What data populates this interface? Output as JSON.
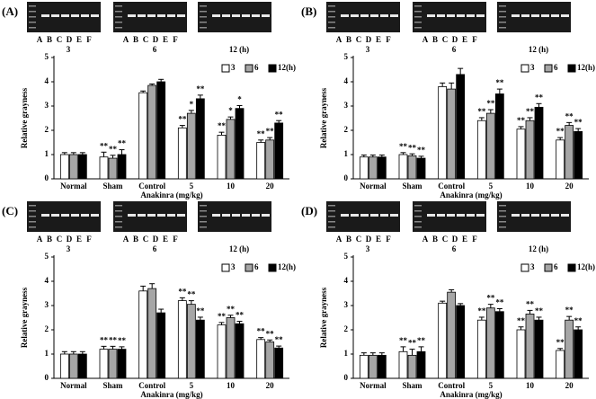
{
  "chart_data": [
    {
      "type": "bar",
      "panel": "(A)",
      "gel_lanes": [
        "A",
        "B",
        "C",
        "D",
        "E",
        "F"
      ],
      "gel_groups": [
        "3",
        "6",
        "12 (h)"
      ],
      "y_label": "Relative grayness",
      "x_label": "Anakinra (mg/kg)",
      "categories": [
        "Normal",
        "Sham",
        "Control",
        "5",
        "10",
        "20"
      ],
      "ylim": [
        0,
        5
      ],
      "yticks": [
        0,
        1,
        2,
        3,
        4,
        5
      ],
      "series": [
        {
          "name": "3",
          "color": "#ffffff",
          "values": [
            1.0,
            0.9,
            3.55,
            2.1,
            1.8,
            1.5
          ],
          "errors": [
            0.08,
            0.2,
            0.07,
            0.1,
            0.12,
            0.1
          ],
          "annotations": [
            null,
            "**",
            null,
            "**",
            "**",
            "**"
          ]
        },
        {
          "name": "6",
          "color": "#a6a6a6",
          "values": [
            1.0,
            0.85,
            3.85,
            2.7,
            2.45,
            1.6
          ],
          "errors": [
            0.08,
            0.12,
            0.06,
            0.12,
            0.1,
            0.1
          ],
          "annotations": [
            null,
            "**",
            null,
            "*",
            "*",
            "**"
          ]
        },
        {
          "name": "12(h)",
          "color": "#000000",
          "values": [
            1.0,
            1.0,
            4.0,
            3.3,
            2.9,
            2.3
          ],
          "errors": [
            0.08,
            0.2,
            0.1,
            0.15,
            0.12,
            0.1
          ],
          "annotations": [
            null,
            "**",
            null,
            "**",
            "*",
            "**"
          ]
        }
      ]
    },
    {
      "type": "bar",
      "panel": "(B)",
      "gel_lanes": [
        "A",
        "B",
        "C",
        "D",
        "E",
        "F"
      ],
      "gel_groups": [
        "3",
        "6",
        "12 (h)"
      ],
      "y_label": "Relative grayness",
      "x_label": "Anakinra (mg/kg)",
      "categories": [
        "Normal",
        "Sham",
        "Control",
        "5",
        "10",
        "20"
      ],
      "ylim": [
        0,
        5
      ],
      "yticks": [
        0,
        1,
        2,
        3,
        4,
        5
      ],
      "series": [
        {
          "name": "3",
          "color": "#ffffff",
          "values": [
            0.9,
            1.0,
            3.8,
            2.4,
            2.05,
            1.6
          ],
          "errors": [
            0.08,
            0.08,
            0.15,
            0.12,
            0.1,
            0.1
          ],
          "annotations": [
            null,
            "**",
            null,
            "**",
            "**",
            "**"
          ]
        },
        {
          "name": "6",
          "color": "#a6a6a6",
          "values": [
            0.9,
            0.95,
            3.7,
            2.7,
            2.4,
            2.2
          ],
          "errors": [
            0.08,
            0.08,
            0.25,
            0.15,
            0.12,
            0.12
          ],
          "annotations": [
            null,
            "**",
            null,
            "**",
            "**",
            "**"
          ]
        },
        {
          "name": "12(h)",
          "color": "#000000",
          "values": [
            0.9,
            0.85,
            4.3,
            3.5,
            2.95,
            1.95
          ],
          "errors": [
            0.08,
            0.08,
            0.25,
            0.2,
            0.15,
            0.12
          ],
          "annotations": [
            null,
            "**",
            null,
            "**",
            "**",
            "**"
          ]
        }
      ]
    },
    {
      "type": "bar",
      "panel": "(C)",
      "gel_lanes": [
        "A",
        "B",
        "C",
        "D",
        "E",
        "F"
      ],
      "gel_groups": [
        "3",
        "6",
        "12 (h)"
      ],
      "y_label": "Relative grayness",
      "x_label": "Anakinra (mg/kg)",
      "categories": [
        "Normal",
        "Sham",
        "Control",
        "5",
        "10",
        "20"
      ],
      "ylim": [
        0,
        5
      ],
      "yticks": [
        0,
        1,
        2,
        3,
        4,
        5
      ],
      "series": [
        {
          "name": "3",
          "color": "#ffffff",
          "values": [
            1.0,
            1.2,
            3.6,
            3.2,
            2.2,
            1.6
          ],
          "errors": [
            0.1,
            0.12,
            0.2,
            0.12,
            0.1,
            0.08
          ],
          "annotations": [
            null,
            "**",
            null,
            "**",
            "**",
            "**"
          ]
        },
        {
          "name": "6",
          "color": "#a6a6a6",
          "values": [
            1.0,
            1.2,
            3.7,
            3.05,
            2.5,
            1.5
          ],
          "errors": [
            0.1,
            0.12,
            0.2,
            0.15,
            0.1,
            0.08
          ],
          "annotations": [
            null,
            "**",
            null,
            "**",
            "**",
            "**"
          ]
        },
        {
          "name": "12(h)",
          "color": "#000000",
          "values": [
            1.0,
            1.2,
            2.7,
            2.4,
            2.25,
            1.25
          ],
          "errors": [
            0.1,
            0.1,
            0.15,
            0.12,
            0.1,
            0.08
          ],
          "annotations": [
            null,
            "**",
            null,
            "**",
            "**",
            "**"
          ]
        }
      ]
    },
    {
      "type": "bar",
      "panel": "(D)",
      "gel_lanes": [
        "A",
        "B",
        "C",
        "D",
        "E",
        "F"
      ],
      "gel_groups": [
        "3",
        "6",
        "12 (h)"
      ],
      "y_label": "Relative grayness",
      "x_label": "Anakinra (mg/kg)",
      "categories": [
        "Normal",
        "Sham",
        "Control",
        "5",
        "10",
        "20"
      ],
      "ylim": [
        0,
        5
      ],
      "yticks": [
        0,
        1,
        2,
        3,
        4,
        5
      ],
      "series": [
        {
          "name": "3",
          "color": "#ffffff",
          "values": [
            0.95,
            1.1,
            3.1,
            2.4,
            2.0,
            1.15
          ],
          "errors": [
            0.1,
            0.2,
            0.08,
            0.12,
            0.12,
            0.08
          ],
          "annotations": [
            null,
            "**",
            null,
            "**",
            "**",
            "**"
          ]
        },
        {
          "name": "6",
          "color": "#a6a6a6",
          "values": [
            0.95,
            0.95,
            3.55,
            2.9,
            2.65,
            2.4
          ],
          "errors": [
            0.1,
            0.25,
            0.1,
            0.15,
            0.15,
            0.15
          ],
          "annotations": [
            null,
            "**",
            null,
            "**",
            "**",
            "**"
          ]
        },
        {
          "name": "12(h)",
          "color": "#000000",
          "values": [
            0.95,
            1.1,
            3.0,
            2.75,
            2.4,
            2.0
          ],
          "errors": [
            0.1,
            0.2,
            0.08,
            0.12,
            0.12,
            0.12
          ],
          "annotations": [
            null,
            "**",
            null,
            "**",
            "**",
            "**"
          ]
        }
      ]
    }
  ]
}
